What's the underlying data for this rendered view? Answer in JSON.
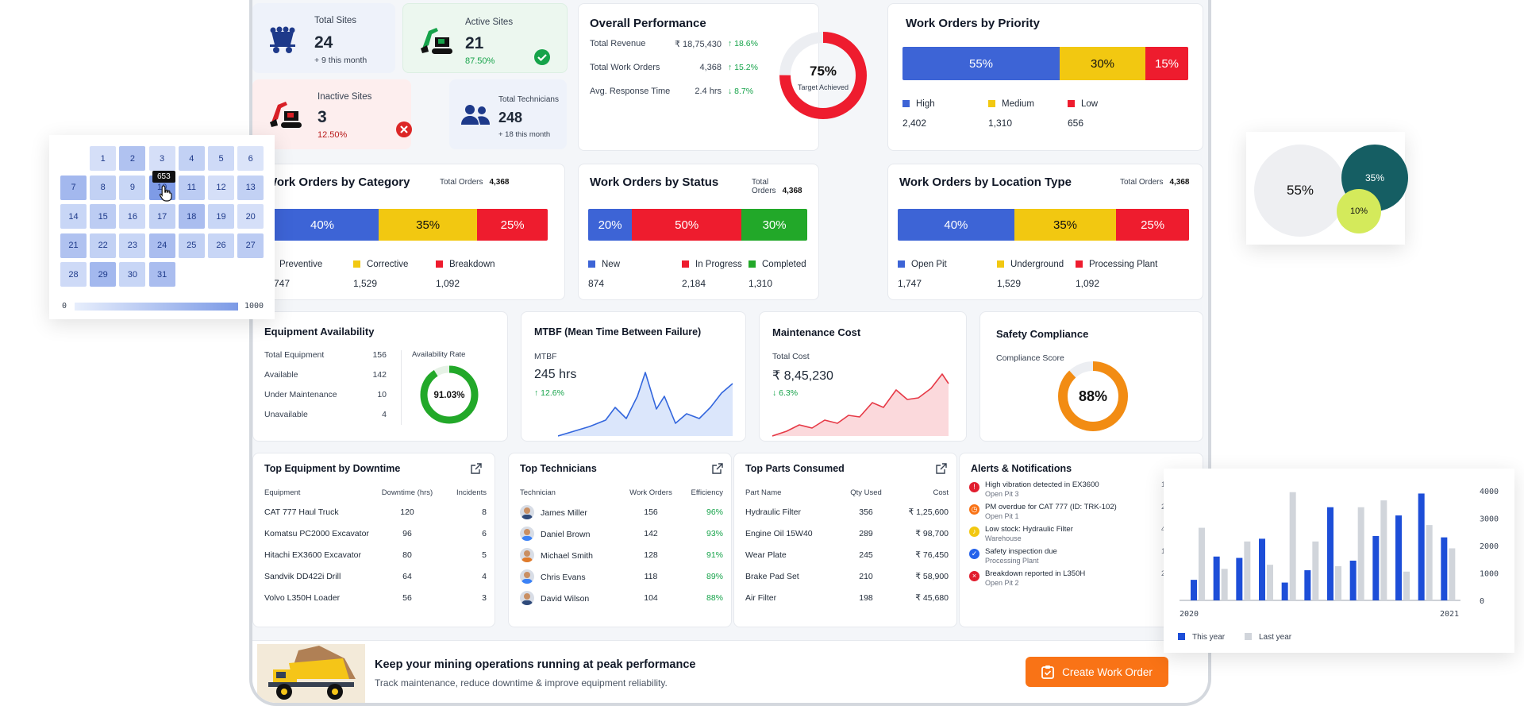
{
  "kpis": {
    "total_sites": {
      "label": "Total Sites",
      "value": "24",
      "sub": "+ 9 this month"
    },
    "active_sites": {
      "label": "Active Sites",
      "value": "21",
      "sub": "87.50%"
    },
    "inactive_sites": {
      "label": "Inactive Sites",
      "value": "3",
      "sub": "12.50%"
    },
    "total_technicians": {
      "label": "Total Technicians",
      "value": "248",
      "sub": "+ 18 this month"
    }
  },
  "overall": {
    "title": "Overall Performance",
    "rows": [
      {
        "label": "Total Revenue",
        "value": "₹ 18,75,430",
        "change": "↑ 18.6%"
      },
      {
        "label": "Total Work Orders",
        "value": "4,368",
        "change": "↑ 15.2%"
      },
      {
        "label": "Avg. Response Time",
        "value": "2.4 hrs",
        "change": "↓ 8.7%"
      }
    ],
    "gauge_value": "75%",
    "gauge_label": "Target Achieved",
    "gauge_fraction": 0.75
  },
  "priority": {
    "title": "Work Orders by Priority",
    "segments": [
      {
        "label": "55%",
        "pct": 55
      },
      {
        "label": "30%",
        "pct": 30
      },
      {
        "label": "15%",
        "pct": 15
      }
    ],
    "legend": [
      {
        "name": "High",
        "value": "2,402"
      },
      {
        "name": "Medium",
        "value": "1,310"
      },
      {
        "name": "Low",
        "value": "656"
      }
    ]
  },
  "category": {
    "title": "Work Orders by Category",
    "total_label": "Total Orders",
    "total": "4,368",
    "segments": [
      {
        "label": "40%",
        "pct": 40
      },
      {
        "label": "35%",
        "pct": 35
      },
      {
        "label": "25%",
        "pct": 25
      }
    ],
    "legend": [
      {
        "name": "Preventive",
        "value": "1,747"
      },
      {
        "name": "Corrective",
        "value": "1,529"
      },
      {
        "name": "Breakdown",
        "value": "1,092"
      }
    ]
  },
  "status": {
    "title": "Work Orders by Status",
    "total_label": "Total Orders",
    "total": "4,368",
    "segments": [
      {
        "label": "20%",
        "pct": 20
      },
      {
        "label": "50%",
        "pct": 50
      },
      {
        "label": "30%",
        "pct": 30
      }
    ],
    "legend": [
      {
        "name": "New",
        "value": "874"
      },
      {
        "name": "In Progress",
        "value": "2,184"
      },
      {
        "name": "Completed",
        "value": "1,310"
      }
    ]
  },
  "location": {
    "title": "Work Orders by Location Type",
    "total_label": "Total Orders",
    "total": "4,368",
    "segments": [
      {
        "label": "40%",
        "pct": 40
      },
      {
        "label": "35%",
        "pct": 35
      },
      {
        "label": "25%",
        "pct": 25
      }
    ],
    "legend": [
      {
        "name": "Open Pit",
        "value": "1,747"
      },
      {
        "name": "Underground",
        "value": "1,529"
      },
      {
        "name": "Processing Plant",
        "value": "1,092"
      }
    ]
  },
  "equipment": {
    "title": "Equipment Availability",
    "rows": [
      {
        "label": "Total Equipment",
        "value": "156"
      },
      {
        "label": "Available",
        "value": "142"
      },
      {
        "label": "Under Maintenance",
        "value": "10"
      },
      {
        "label": "Unavailable",
        "value": "4"
      }
    ],
    "rate_label": "Availability Rate",
    "rate_value": "91.03%",
    "rate_fraction": 0.9103
  },
  "mtbf": {
    "title": "MTBF (Mean Time Between Failure)",
    "label": "MTBF",
    "value": "245 hrs",
    "change": "↑ 12.6%"
  },
  "cost": {
    "title": "Maintenance Cost",
    "label": "Total Cost",
    "value": "₹ 8,45,230",
    "change": "↓ 6.3%"
  },
  "safety": {
    "title": "Safety Compliance",
    "label": "Compliance Score",
    "value": "88%",
    "fraction": 0.88
  },
  "downtime": {
    "title": "Top Equipment by Downtime",
    "headers": [
      "Equipment",
      "Downtime (hrs)",
      "Incidents"
    ],
    "rows": [
      [
        "CAT 777 Haul Truck",
        "120",
        "8"
      ],
      [
        "Komatsu PC2000 Excavator",
        "96",
        "6"
      ],
      [
        "Hitachi EX3600 Excavator",
        "80",
        "5"
      ],
      [
        "Sandvik DD422i Drill",
        "64",
        "4"
      ],
      [
        "Volvo L350H Loader",
        "56",
        "3"
      ]
    ]
  },
  "technicians": {
    "title": "Top Technicians",
    "headers": [
      "Technician",
      "Work Orders",
      "Efficiency"
    ],
    "rows": [
      [
        "James Miller",
        "156",
        "96%"
      ],
      [
        "Daniel Brown",
        "142",
        "93%"
      ],
      [
        "Michael Smith",
        "128",
        "91%"
      ],
      [
        "Chris Evans",
        "118",
        "89%"
      ],
      [
        "David Wilson",
        "104",
        "88%"
      ]
    ]
  },
  "parts": {
    "title": "Top Parts Consumed",
    "headers": [
      "Part Name",
      "Qty Used",
      "Cost"
    ],
    "rows": [
      [
        "Hydraulic Filter",
        "356",
        "₹ 1,25,600"
      ],
      [
        "Engine Oil 15W40",
        "289",
        "₹ 98,700"
      ],
      [
        "Wear Plate",
        "245",
        "₹ 76,450"
      ],
      [
        "Brake Pad Set",
        "210",
        "₹ 58,900"
      ],
      [
        "Air Filter",
        "198",
        "₹ 45,680"
      ]
    ]
  },
  "alerts": {
    "title": "Alerts & Notifications",
    "items": [
      {
        "text": "High vibration detected in EX3600",
        "sub": "Open Pit 3",
        "time": "10 m",
        "icon": "warning-icon",
        "color": "#e11d2e"
      },
      {
        "text": "PM overdue for CAT 777 (ID: TRK-102)",
        "sub": "Open Pit 1",
        "time": "25 m",
        "icon": "clock-icon",
        "color": "#f97316"
      },
      {
        "text": "Low stock: Hydraulic Filter",
        "sub": "Warehouse",
        "time": "45 m",
        "icon": "bell-icon",
        "color": "#f2c811"
      },
      {
        "text": "Safety inspection due",
        "sub": "Processing Plant",
        "time": "1 ho",
        "icon": "shield-icon",
        "color": "#2563eb"
      },
      {
        "text": "Breakdown reported in L350H",
        "sub": "Open Pit 2",
        "time": "2 ho",
        "icon": "error-icon",
        "color": "#e11d2e"
      }
    ]
  },
  "banner": {
    "title": "Keep your mining operations running at peak performance",
    "subtitle": "Track maintenance, reduce downtime & improve equipment reliability.",
    "cta": "Create Work Order"
  },
  "calendar": {
    "days": [
      "1",
      "2",
      "3",
      "4",
      "5",
      "6",
      "7",
      "8",
      "9",
      "10",
      "11",
      "12",
      "13",
      "14",
      "15",
      "16",
      "17",
      "18",
      "19",
      "20",
      "21",
      "22",
      "23",
      "24",
      "25",
      "26",
      "27",
      "28",
      "29",
      "30",
      "31"
    ],
    "intensity": [
      0.15,
      0.45,
      0.15,
      0.3,
      0.2,
      0.1,
      0.55,
      0.3,
      0.25,
      0.85,
      0.35,
      0.15,
      0.3,
      0.25,
      0.35,
      0.2,
      0.3,
      0.5,
      0.25,
      0.15,
      0.45,
      0.3,
      0.25,
      0.5,
      0.3,
      0.25,
      0.35,
      0.2,
      0.55,
      0.25,
      0.5
    ],
    "tooltip": "653",
    "scale_min": "0",
    "scale_max": "1000"
  },
  "bubbles": [
    {
      "label": "55%",
      "color": "#eeeff2"
    },
    {
      "label": "35%",
      "color": "#155e63"
    },
    {
      "label": "10%",
      "color": "#d4ea5b"
    }
  ],
  "chart_data": {
    "type": "bar",
    "x_start_label": "2020",
    "x_end_label": "2021",
    "yticks": [
      "4000",
      "3000",
      "2000",
      "1000",
      "0"
    ],
    "ylim": [
      0,
      4000
    ],
    "series": [
      {
        "name": "This year",
        "color": "#1d4ed8",
        "values": [
          750,
          1600,
          1550,
          2250,
          650,
          1100,
          3400,
          1450,
          2350,
          3100,
          3900,
          2300
        ]
      },
      {
        "name": "Last year",
        "color": "#d1d5db",
        "values": [
          2650,
          1150,
          2150,
          1300,
          3950,
          2150,
          1250,
          3400,
          3650,
          1050,
          2750,
          1900
        ]
      }
    ]
  }
}
